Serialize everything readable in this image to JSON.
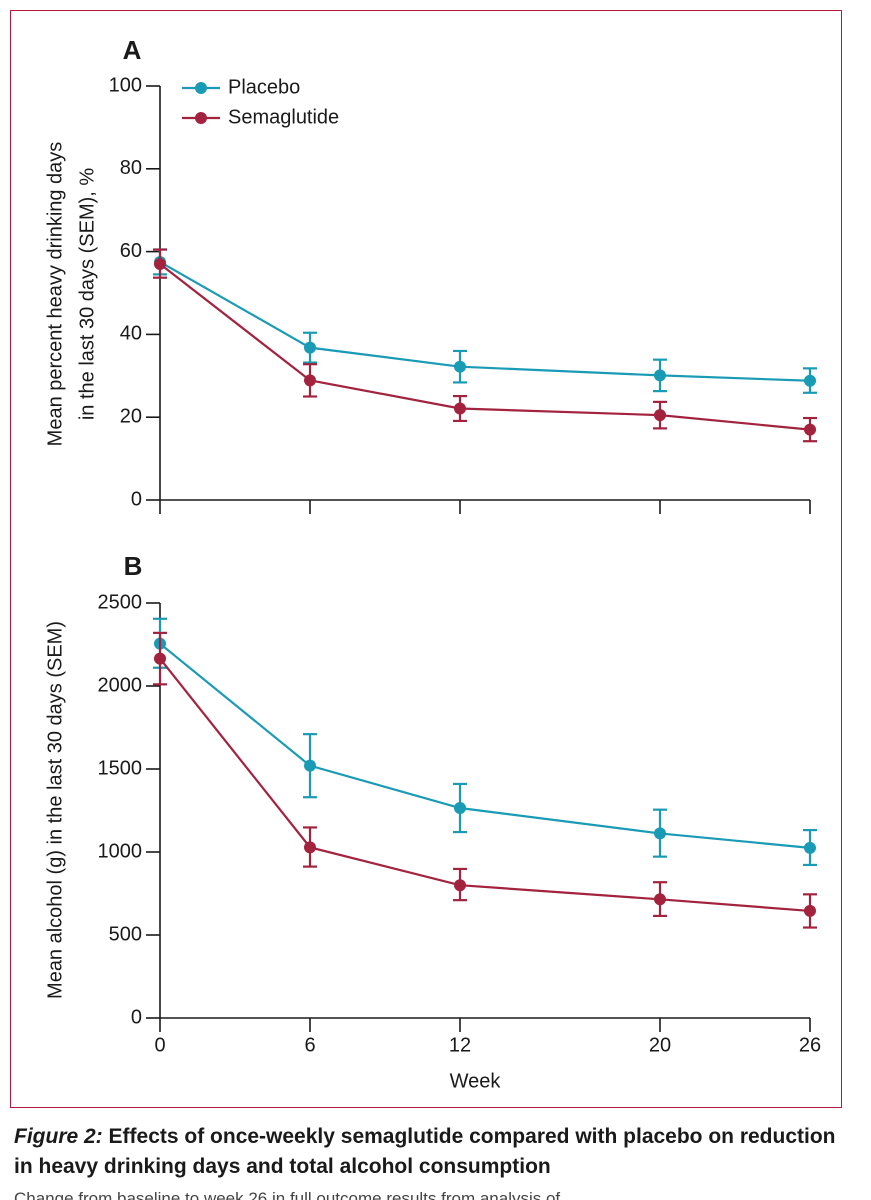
{
  "chart_data": [
    {
      "type": "line",
      "panel_label": "A",
      "ylabel_lines": [
        "Mean percent heavy drinking days",
        "in the last 30 days (SEM), %"
      ],
      "xlabel": "",
      "ylim": [
        0,
        100
      ],
      "yticks": [
        0,
        20,
        40,
        60,
        80,
        100
      ],
      "x": [
        0,
        6,
        12,
        20,
        26
      ],
      "xtick_labels": [
        "",
        "",
        "",
        "",
        ""
      ],
      "legend": {
        "placement": "top-left",
        "entries": [
          "Placebo",
          "Semaglutide"
        ]
      },
      "series": [
        {
          "name": "Placebo",
          "color": "#1a9bb5",
          "values": [
            57.5,
            36.8,
            32.2,
            30.1,
            28.8
          ],
          "err_low": [
            54.5,
            33.2,
            28.4,
            26.3,
            25.9
          ],
          "err_high": [
            60.5,
            40.4,
            36.0,
            33.9,
            31.8
          ]
        },
        {
          "name": "Semaglutide",
          "color": "#a3233f",
          "values": [
            57.0,
            28.9,
            22.1,
            20.5,
            17.0
          ],
          "err_low": [
            53.7,
            25.0,
            19.1,
            17.3,
            14.2
          ],
          "err_high": [
            60.5,
            32.8,
            25.1,
            23.7,
            19.8
          ]
        }
      ]
    },
    {
      "type": "line",
      "panel_label": "B",
      "ylabel_lines": [
        "Mean alcohol (g) in the last 30 days (SEM)"
      ],
      "xlabel": "Week",
      "ylim": [
        0,
        2500
      ],
      "yticks": [
        0,
        500,
        1000,
        1500,
        2000,
        2500
      ],
      "x": [
        0,
        6,
        12,
        20,
        26
      ],
      "xtick_labels": [
        "0",
        "6",
        "12",
        "20",
        "26"
      ],
      "series": [
        {
          "name": "Placebo",
          "color": "#1a9bb5",
          "values": [
            2255,
            1520,
            1265,
            1112,
            1025
          ],
          "err_low": [
            2110,
            1330,
            1120,
            972,
            922
          ],
          "err_high": [
            2405,
            1710,
            1410,
            1255,
            1132
          ]
        },
        {
          "name": "Semaglutide",
          "color": "#a3233f",
          "values": [
            2165,
            1028,
            800,
            715,
            645
          ],
          "err_low": [
            2010,
            912,
            710,
            615,
            545
          ],
          "err_high": [
            2320,
            1148,
            898,
            818,
            745
          ]
        }
      ]
    }
  ],
  "caption": {
    "figure_label": "Figure 2:",
    "text": " Effects of once-weekly semaglutide compared with placebo on reduction in heavy drinking days and total alcohol consumption",
    "partial_line": "Change from baseline to week 26 in full outcome results from analysis of"
  }
}
